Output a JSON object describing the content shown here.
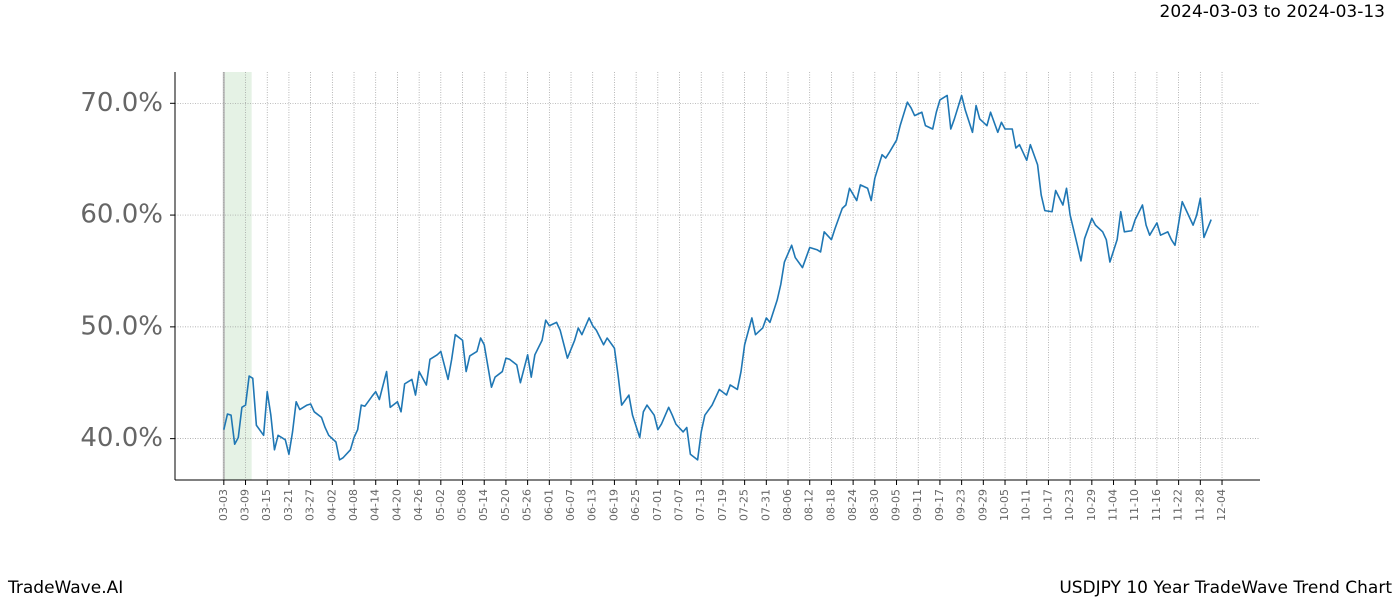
{
  "chart_data": {
    "type": "line",
    "title": "2024-03-03 to 2024-03-13",
    "footer_left": "TradeWave.AI",
    "footer_right": "USDJPY 10 Year TradeWave Trend Chart",
    "xlim": [
      -13.5,
      286.5
    ],
    "ylim": [
      36.3,
      72.8
    ],
    "yticks": [
      {
        "value": 40,
        "label": "40.0%"
      },
      {
        "value": 50,
        "label": "50.0%"
      },
      {
        "value": 60,
        "label": "60.0%"
      },
      {
        "value": 70,
        "label": "70.0%"
      }
    ],
    "xticks": [
      {
        "value": 0,
        "label": "03-03"
      },
      {
        "value": 6,
        "label": "03-09"
      },
      {
        "value": 12,
        "label": "03-15"
      },
      {
        "value": 18,
        "label": "03-21"
      },
      {
        "value": 24,
        "label": "03-27"
      },
      {
        "value": 30,
        "label": "04-02"
      },
      {
        "value": 36,
        "label": "04-08"
      },
      {
        "value": 42,
        "label": "04-14"
      },
      {
        "value": 48,
        "label": "04-20"
      },
      {
        "value": 54,
        "label": "04-26"
      },
      {
        "value": 60,
        "label": "05-02"
      },
      {
        "value": 66,
        "label": "05-08"
      },
      {
        "value": 72,
        "label": "05-14"
      },
      {
        "value": 78,
        "label": "05-20"
      },
      {
        "value": 84,
        "label": "05-26"
      },
      {
        "value": 90,
        "label": "06-01"
      },
      {
        "value": 96,
        "label": "06-07"
      },
      {
        "value": 102,
        "label": "06-13"
      },
      {
        "value": 108,
        "label": "06-19"
      },
      {
        "value": 114,
        "label": "06-25"
      },
      {
        "value": 120,
        "label": "07-01"
      },
      {
        "value": 126,
        "label": "07-07"
      },
      {
        "value": 132,
        "label": "07-13"
      },
      {
        "value": 138,
        "label": "07-19"
      },
      {
        "value": 144,
        "label": "07-25"
      },
      {
        "value": 150,
        "label": "07-31"
      },
      {
        "value": 156,
        "label": "08-06"
      },
      {
        "value": 162,
        "label": "08-12"
      },
      {
        "value": 168,
        "label": "08-18"
      },
      {
        "value": 174,
        "label": "08-24"
      },
      {
        "value": 180,
        "label": "08-30"
      },
      {
        "value": 186,
        "label": "09-05"
      },
      {
        "value": 192,
        "label": "09-11"
      },
      {
        "value": 198,
        "label": "09-17"
      },
      {
        "value": 204,
        "label": "09-23"
      },
      {
        "value": 210,
        "label": "09-29"
      },
      {
        "value": 216,
        "label": "10-05"
      },
      {
        "value": 222,
        "label": "10-11"
      },
      {
        "value": 228,
        "label": "10-17"
      },
      {
        "value": 234,
        "label": "10-23"
      },
      {
        "value": 240,
        "label": "10-29"
      },
      {
        "value": 246,
        "label": "11-04"
      },
      {
        "value": 252,
        "label": "11-10"
      },
      {
        "value": 258,
        "label": "11-16"
      },
      {
        "value": 264,
        "label": "11-22"
      },
      {
        "value": 270,
        "label": "11-28"
      },
      {
        "value": 276,
        "label": "12-04"
      }
    ],
    "highlight_x": [
      0,
      7.7
    ],
    "grid": true,
    "series": [
      {
        "color": "#1f77b4",
        "x": [
          0,
          1,
          2,
          3,
          4,
          5,
          6,
          7,
          8,
          9,
          11,
          12,
          13,
          14,
          15,
          17,
          18,
          19,
          20,
          21,
          23,
          24,
          25,
          27,
          28,
          29,
          31,
          32,
          33,
          35,
          36,
          37,
          38,
          39,
          41,
          42,
          43,
          45,
          46,
          48,
          49,
          50,
          52,
          53,
          54,
          56,
          57,
          59,
          60,
          62,
          63,
          64,
          66,
          67,
          68,
          70,
          71,
          72,
          74,
          75,
          77,
          78,
          79,
          81,
          82,
          84,
          85,
          86,
          88,
          89,
          90,
          92,
          93,
          95,
          97,
          98,
          99,
          101,
          102,
          103,
          105,
          106,
          108,
          109,
          110,
          112,
          113,
          115,
          116,
          117,
          119,
          120,
          121,
          123,
          124,
          125,
          127,
          128,
          129,
          131,
          132,
          133,
          135,
          136,
          137,
          139,
          140,
          142,
          143,
          144,
          146,
          147,
          149,
          150,
          151,
          153,
          154,
          155,
          157,
          158,
          160,
          161,
          162,
          164,
          165,
          166,
          168,
          169,
          171,
          172,
          173,
          175,
          176,
          178,
          179,
          180,
          182,
          183,
          184,
          186,
          187,
          189,
          190,
          191,
          193,
          194,
          196,
          197,
          198,
          200,
          201,
          202,
          204,
          205,
          207,
          208,
          209,
          211,
          212,
          214,
          215,
          216,
          218,
          219,
          220,
          222,
          223,
          225,
          226,
          227,
          229,
          230,
          232,
          233,
          234,
          236,
          237,
          238,
          240,
          241,
          243,
          244,
          245,
          247,
          248,
          249,
          251,
          252,
          254,
          255,
          256,
          258,
          259,
          261,
          262,
          263,
          265,
          266,
          268,
          269,
          270,
          271,
          273
        ],
        "values": [
          40.8,
          42.2,
          42.1,
          39.5,
          40.1,
          42.8,
          43.0,
          45.6,
          45.4,
          41.2,
          40.3,
          44.2,
          42.1,
          39.0,
          40.3,
          39.9,
          38.6,
          40.6,
          43.3,
          42.6,
          43.0,
          43.1,
          42.4,
          41.9,
          41.0,
          40.3,
          39.7,
          38.1,
          38.3,
          39.0,
          40.1,
          40.8,
          43.0,
          42.9,
          43.8,
          44.2,
          43.5,
          46.0,
          42.8,
          43.3,
          42.4,
          44.9,
          45.3,
          43.9,
          46.0,
          44.8,
          47.1,
          47.5,
          47.8,
          45.3,
          47.1,
          49.3,
          48.8,
          46.0,
          47.4,
          47.8,
          49.0,
          48.4,
          44.6,
          45.5,
          46.0,
          47.2,
          47.1,
          46.6,
          45.0,
          47.5,
          45.5,
          47.5,
          48.8,
          50.6,
          50.1,
          50.4,
          49.7,
          47.2,
          48.8,
          49.9,
          49.3,
          50.8,
          50.1,
          49.7,
          48.4,
          49.0,
          48.1,
          45.7,
          43.0,
          43.9,
          42.1,
          40.1,
          42.4,
          43.0,
          42.1,
          40.8,
          41.3,
          42.8,
          42.1,
          41.3,
          40.6,
          41.0,
          38.6,
          38.1,
          40.6,
          42.1,
          43.0,
          43.7,
          44.4,
          43.9,
          44.8,
          44.4,
          46.0,
          48.4,
          50.8,
          49.3,
          49.9,
          50.8,
          50.4,
          52.4,
          53.8,
          55.8,
          57.3,
          56.2,
          55.3,
          56.2,
          57.1,
          56.9,
          56.7,
          58.5,
          57.8,
          58.8,
          60.6,
          60.9,
          62.4,
          61.3,
          62.7,
          62.4,
          61.3,
          63.3,
          65.4,
          65.1,
          65.6,
          66.7,
          68.0,
          70.1,
          69.6,
          68.9,
          69.2,
          68.0,
          67.7,
          69.2,
          70.3,
          70.7,
          67.7,
          68.6,
          70.7,
          69.4,
          67.4,
          69.8,
          68.6,
          68.0,
          69.2,
          67.4,
          68.3,
          67.7,
          67.7,
          66.0,
          66.3,
          64.9,
          66.3,
          64.5,
          61.8,
          60.4,
          60.3,
          62.2,
          60.9,
          62.4,
          60.0,
          57.3,
          55.9,
          57.9,
          59.7,
          59.1,
          58.5,
          57.8,
          55.8,
          57.8,
          60.3,
          58.5,
          58.6,
          59.6,
          60.9,
          59.1,
          58.2,
          59.3,
          58.2,
          58.5,
          57.8,
          57.3,
          61.2,
          60.5,
          59.1,
          60.0,
          61.5,
          58.0,
          59.6
        ]
      }
    ]
  }
}
